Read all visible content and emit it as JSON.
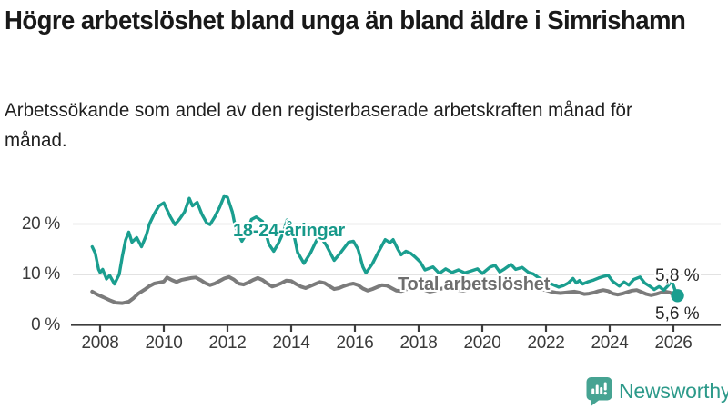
{
  "header": {
    "title": "Högre arbetslöshet bland unga än bland äldre i Simrishamn",
    "subtitle": "Arbetssökande som andel av den registerbaserade arbetskraften månad för månad."
  },
  "chart_data": {
    "type": "line",
    "title": "Högre arbetslöshet bland unga än bland äldre i Simrishamn",
    "subtitle": "Arbetssökande som andel av den registerbaserade arbetskraften månad för månad.",
    "grid": "horizontal",
    "legend_position": "inline-labels",
    "x_axis": {
      "ticks": [
        2008,
        2010,
        2012,
        2014,
        2016,
        2018,
        2020,
        2022,
        2024,
        2026
      ],
      "range": [
        2007.6,
        2027.4
      ]
    },
    "y_axis": {
      "ticks": [
        0,
        10,
        20
      ],
      "tick_labels": [
        "0 %",
        "10 %",
        "20 %"
      ],
      "range": [
        0,
        27.5
      ],
      "unit": "%"
    },
    "series": [
      {
        "name": "18-24-åringar",
        "color": "#1A9E8F",
        "end_label": "5,8 %",
        "end_value": 5.8,
        "marker_on_last": true,
        "points": [
          [
            2007.75,
            15.5
          ],
          [
            2007.85,
            14.2
          ],
          [
            2007.95,
            11.0
          ],
          [
            2008.0,
            10.4
          ],
          [
            2008.08,
            11.0
          ],
          [
            2008.2,
            9.1
          ],
          [
            2008.3,
            9.8
          ],
          [
            2008.45,
            8.1
          ],
          [
            2008.6,
            10.0
          ],
          [
            2008.7,
            13.7
          ],
          [
            2008.8,
            16.8
          ],
          [
            2008.9,
            18.4
          ],
          [
            2009.0,
            16.4
          ],
          [
            2009.15,
            17.3
          ],
          [
            2009.3,
            15.5
          ],
          [
            2009.45,
            17.8
          ],
          [
            2009.55,
            20.0
          ],
          [
            2009.7,
            22.0
          ],
          [
            2009.85,
            23.6
          ],
          [
            2010.0,
            24.2
          ],
          [
            2010.2,
            21.5
          ],
          [
            2010.35,
            19.9
          ],
          [
            2010.5,
            21.0
          ],
          [
            2010.65,
            22.4
          ],
          [
            2010.8,
            25.1
          ],
          [
            2010.9,
            23.6
          ],
          [
            2011.05,
            24.3
          ],
          [
            2011.2,
            21.9
          ],
          [
            2011.35,
            20.2
          ],
          [
            2011.45,
            19.9
          ],
          [
            2011.6,
            21.4
          ],
          [
            2011.75,
            23.3
          ],
          [
            2011.9,
            25.6
          ],
          [
            2012.0,
            25.3
          ],
          [
            2012.15,
            22.4
          ],
          [
            2012.25,
            19.3
          ],
          [
            2012.45,
            16.6
          ],
          [
            2012.6,
            18.1
          ],
          [
            2012.75,
            20.9
          ],
          [
            2012.9,
            21.4
          ],
          [
            2013.1,
            20.5
          ],
          [
            2013.3,
            16.0
          ],
          [
            2013.45,
            14.6
          ],
          [
            2013.6,
            16.2
          ],
          [
            2013.75,
            18.3
          ],
          [
            2013.87,
            20.8
          ],
          [
            2014.05,
            19.0
          ],
          [
            2014.2,
            14.4
          ],
          [
            2014.4,
            12.2
          ],
          [
            2014.6,
            14.2
          ],
          [
            2014.8,
            16.8
          ],
          [
            2014.95,
            17.2
          ],
          [
            2015.1,
            15.8
          ],
          [
            2015.35,
            12.8
          ],
          [
            2015.55,
            14.3
          ],
          [
            2015.8,
            16.4
          ],
          [
            2015.95,
            16.6
          ],
          [
            2016.1,
            15.0
          ],
          [
            2016.25,
            11.5
          ],
          [
            2016.35,
            10.3
          ],
          [
            2016.55,
            12.1
          ],
          [
            2016.7,
            14.0
          ],
          [
            2016.95,
            16.9
          ],
          [
            2017.1,
            16.3
          ],
          [
            2017.2,
            16.9
          ],
          [
            2017.35,
            15.0
          ],
          [
            2017.45,
            13.9
          ],
          [
            2017.6,
            14.6
          ],
          [
            2017.75,
            14.2
          ],
          [
            2017.9,
            13.4
          ],
          [
            2018.05,
            12.5
          ],
          [
            2018.2,
            10.9
          ],
          [
            2018.45,
            11.5
          ],
          [
            2018.65,
            10.2
          ],
          [
            2018.85,
            11.1
          ],
          [
            2019.05,
            10.4
          ],
          [
            2019.25,
            10.9
          ],
          [
            2019.45,
            10.3
          ],
          [
            2019.65,
            10.7
          ],
          [
            2019.85,
            11.1
          ],
          [
            2020.0,
            10.2
          ],
          [
            2020.25,
            11.5
          ],
          [
            2020.4,
            11.8
          ],
          [
            2020.55,
            10.5
          ],
          [
            2020.7,
            11.1
          ],
          [
            2020.9,
            12.0
          ],
          [
            2021.05,
            11.0
          ],
          [
            2021.25,
            11.4
          ],
          [
            2021.45,
            10.4
          ],
          [
            2021.6,
            10.1
          ],
          [
            2021.75,
            9.4
          ],
          [
            2021.9,
            8.9
          ],
          [
            2022.1,
            8.3
          ],
          [
            2022.25,
            7.9
          ],
          [
            2022.4,
            7.5
          ],
          [
            2022.55,
            7.8
          ],
          [
            2022.7,
            8.3
          ],
          [
            2022.85,
            9.2
          ],
          [
            2022.95,
            8.3
          ],
          [
            2023.05,
            8.8
          ],
          [
            2023.15,
            8.1
          ],
          [
            2023.3,
            8.5
          ],
          [
            2023.5,
            8.9
          ],
          [
            2023.65,
            9.3
          ],
          [
            2023.8,
            9.6
          ],
          [
            2023.95,
            9.8
          ],
          [
            2024.1,
            8.6
          ],
          [
            2024.3,
            7.7
          ],
          [
            2024.45,
            8.5
          ],
          [
            2024.6,
            7.9
          ],
          [
            2024.75,
            9.0
          ],
          [
            2024.95,
            9.5
          ],
          [
            2025.1,
            8.3
          ],
          [
            2025.25,
            7.7
          ],
          [
            2025.4,
            7.0
          ],
          [
            2025.55,
            7.6
          ],
          [
            2025.7,
            6.9
          ],
          [
            2025.85,
            7.9
          ],
          [
            2025.95,
            8.7
          ],
          [
            2026.04,
            7.1
          ],
          [
            2026.13,
            5.8
          ]
        ]
      },
      {
        "name": "Total arbetslöshet",
        "color": "#7B7B7B",
        "end_label": "5,6 %",
        "end_value": 5.6,
        "marker_on_last": false,
        "points": [
          [
            2007.75,
            6.6
          ],
          [
            2007.92,
            6.0
          ],
          [
            2008.1,
            5.5
          ],
          [
            2008.3,
            4.9
          ],
          [
            2008.5,
            4.4
          ],
          [
            2008.7,
            4.3
          ],
          [
            2008.9,
            4.6
          ],
          [
            2009.05,
            5.3
          ],
          [
            2009.2,
            6.2
          ],
          [
            2009.4,
            7.0
          ],
          [
            2009.55,
            7.7
          ],
          [
            2009.7,
            8.2
          ],
          [
            2009.85,
            8.4
          ],
          [
            2010.0,
            8.6
          ],
          [
            2010.1,
            9.4
          ],
          [
            2010.25,
            8.9
          ],
          [
            2010.4,
            8.5
          ],
          [
            2010.55,
            8.9
          ],
          [
            2010.7,
            9.1
          ],
          [
            2010.85,
            9.3
          ],
          [
            2011.0,
            9.4
          ],
          [
            2011.15,
            8.9
          ],
          [
            2011.3,
            8.3
          ],
          [
            2011.45,
            7.9
          ],
          [
            2011.6,
            8.2
          ],
          [
            2011.75,
            8.7
          ],
          [
            2011.9,
            9.2
          ],
          [
            2012.05,
            9.5
          ],
          [
            2012.2,
            9.0
          ],
          [
            2012.35,
            8.2
          ],
          [
            2012.5,
            8.0
          ],
          [
            2012.65,
            8.4
          ],
          [
            2012.8,
            8.9
          ],
          [
            2012.95,
            9.3
          ],
          [
            2013.1,
            8.9
          ],
          [
            2013.25,
            8.2
          ],
          [
            2013.4,
            7.6
          ],
          [
            2013.55,
            7.9
          ],
          [
            2013.7,
            8.3
          ],
          [
            2013.85,
            8.8
          ],
          [
            2014.0,
            8.7
          ],
          [
            2014.15,
            8.1
          ],
          [
            2014.3,
            7.6
          ],
          [
            2014.45,
            7.3
          ],
          [
            2014.6,
            7.7
          ],
          [
            2014.75,
            8.1
          ],
          [
            2014.9,
            8.5
          ],
          [
            2015.05,
            8.3
          ],
          [
            2015.2,
            7.7
          ],
          [
            2015.35,
            7.1
          ],
          [
            2015.5,
            7.3
          ],
          [
            2015.65,
            7.7
          ],
          [
            2015.8,
            8.0
          ],
          [
            2015.95,
            8.2
          ],
          [
            2016.1,
            7.9
          ],
          [
            2016.25,
            7.2
          ],
          [
            2016.4,
            6.8
          ],
          [
            2016.55,
            7.1
          ],
          [
            2016.7,
            7.5
          ],
          [
            2016.85,
            7.9
          ],
          [
            2017.0,
            7.8
          ],
          [
            2017.15,
            7.3
          ],
          [
            2017.3,
            6.8
          ],
          [
            2017.45,
            6.7
          ],
          [
            2017.6,
            7.0
          ],
          [
            2017.75,
            7.3
          ],
          [
            2017.9,
            7.5
          ],
          [
            2018.05,
            7.3
          ],
          [
            2018.2,
            6.9
          ],
          [
            2018.35,
            6.6
          ],
          [
            2018.5,
            6.8
          ],
          [
            2018.65,
            7.1
          ],
          [
            2018.8,
            7.3
          ],
          [
            2018.95,
            7.4
          ],
          [
            2019.1,
            7.2
          ],
          [
            2019.25,
            6.9
          ],
          [
            2019.4,
            6.8
          ],
          [
            2019.55,
            7.0
          ],
          [
            2019.7,
            7.2
          ],
          [
            2019.85,
            7.4
          ],
          [
            2020.0,
            7.6
          ],
          [
            2020.2,
            8.4
          ],
          [
            2020.35,
            8.9
          ],
          [
            2020.5,
            8.8
          ],
          [
            2020.65,
            8.6
          ],
          [
            2020.8,
            8.5
          ],
          [
            2020.95,
            8.6
          ],
          [
            2021.1,
            8.3
          ],
          [
            2021.25,
            8.0
          ],
          [
            2021.4,
            7.6
          ],
          [
            2021.55,
            7.3
          ],
          [
            2021.7,
            7.1
          ],
          [
            2021.85,
            7.0
          ],
          [
            2022.0,
            6.9
          ],
          [
            2022.15,
            6.6
          ],
          [
            2022.3,
            6.4
          ],
          [
            2022.45,
            6.3
          ],
          [
            2022.6,
            6.4
          ],
          [
            2022.75,
            6.5
          ],
          [
            2022.9,
            6.6
          ],
          [
            2023.05,
            6.4
          ],
          [
            2023.2,
            6.1
          ],
          [
            2023.35,
            6.2
          ],
          [
            2023.5,
            6.4
          ],
          [
            2023.65,
            6.7
          ],
          [
            2023.8,
            6.9
          ],
          [
            2023.95,
            6.7
          ],
          [
            2024.1,
            6.2
          ],
          [
            2024.25,
            6.0
          ],
          [
            2024.4,
            6.2
          ],
          [
            2024.55,
            6.5
          ],
          [
            2024.7,
            6.8
          ],
          [
            2024.85,
            6.9
          ],
          [
            2025.0,
            6.5
          ],
          [
            2025.15,
            6.1
          ],
          [
            2025.3,
            5.9
          ],
          [
            2025.45,
            6.1
          ],
          [
            2025.6,
            6.4
          ],
          [
            2025.75,
            6.6
          ],
          [
            2025.9,
            6.4
          ],
          [
            2026.0,
            6.0
          ],
          [
            2026.13,
            5.6
          ]
        ]
      }
    ]
  },
  "styles": {
    "grid_color": "#D8D8D8",
    "axis_color": "#3C3C3C",
    "title_color": "#191919",
    "tick_label_color": "#3A3A3A"
  },
  "footer": {
    "brand": "Newsworthy",
    "logo_icon": "bar-chart-speech-bubble-icon",
    "brand_color": "#2D9A8A",
    "icon_color": "#46A392"
  }
}
